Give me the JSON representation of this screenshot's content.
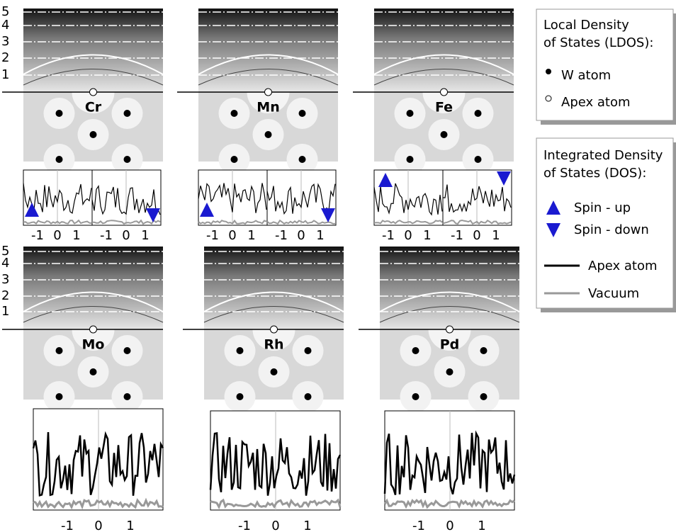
{
  "figure": {
    "height_axis": {
      "top": [
        "5",
        "4",
        "3",
        "2",
        "1"
      ],
      "bottom": [
        "5",
        "4",
        "3",
        "2",
        "1"
      ]
    },
    "panels": [
      {
        "label": "Cr",
        "ticks": [
          "-1",
          "0",
          "1",
          "-1",
          "0",
          "1"
        ]
      },
      {
        "label": "Mn",
        "ticks": [
          "-1",
          "0",
          "1",
          "-1",
          "0",
          "1"
        ]
      },
      {
        "label": "Fe",
        "ticks": [
          "-1",
          "0",
          "1",
          "-1",
          "0",
          "1"
        ]
      },
      {
        "label": "Mo",
        "ticks": [
          "-1",
          "0",
          "1"
        ]
      },
      {
        "label": "Rh",
        "ticks": [
          "-1",
          "0",
          "1"
        ]
      },
      {
        "label": "Pd",
        "ticks": [
          "-1",
          "0",
          "1"
        ]
      }
    ],
    "legend_ldos": {
      "title": [
        "Local Density",
        "of States (LDOS):"
      ],
      "items": [
        "W atom",
        "Apex atom"
      ]
    },
    "legend_dos": {
      "title": [
        "Integrated Density",
        "of States (DOS):"
      ],
      "items": [
        "Spin - up",
        "Spin - down",
        "Apex atom",
        "Vacuum"
      ]
    }
  }
}
